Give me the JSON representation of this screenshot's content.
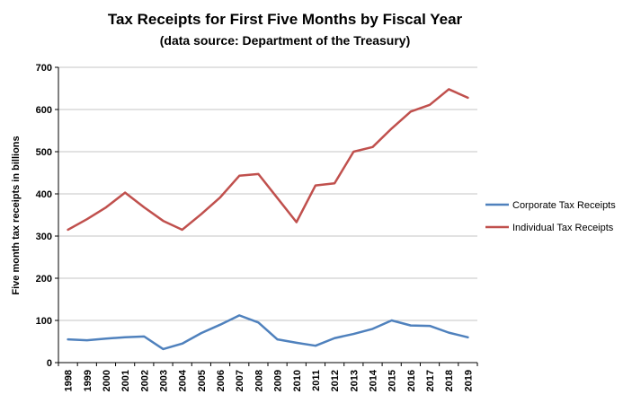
{
  "chart_data": {
    "type": "line",
    "title": "Tax Receipts for First Five Months by Fiscal Year",
    "subtitle": "(data source: Department of the Treasury)",
    "ylabel": "Five month tax receipts in billions",
    "xlabel": "",
    "categories": [
      "1998",
      "1999",
      "2000",
      "2001",
      "2002",
      "2003",
      "2004",
      "2005",
      "2006",
      "2007",
      "2008",
      "2009",
      "2010",
      "2011",
      "2012",
      "2013",
      "2014",
      "2015",
      "2016",
      "2017",
      "2018",
      "2019"
    ],
    "ylim": [
      0,
      700
    ],
    "ytick_step": 100,
    "grid": true,
    "grid_color": "#C6C6C6",
    "axis_color": "#000000",
    "legend_position": "right",
    "series": [
      {
        "name": "Corporate Tax Receipts",
        "color": "#4F81BD",
        "values": [
          55,
          53,
          57,
          60,
          62,
          32,
          45,
          70,
          90,
          112,
          95,
          55,
          47,
          40,
          58,
          68,
          80,
          100,
          88,
          87,
          71,
          60
        ]
      },
      {
        "name": "Individual Tax Receipts",
        "color": "#C0504D",
        "values": [
          315,
          340,
          368,
          403,
          368,
          336,
          315,
          352,
          392,
          443,
          447,
          390,
          333,
          420,
          425,
          500,
          511,
          555,
          595,
          611,
          648,
          628
        ]
      }
    ]
  }
}
